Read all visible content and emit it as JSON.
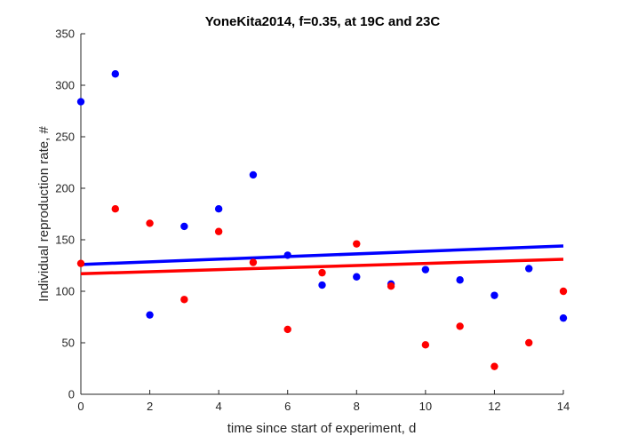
{
  "chart_data": {
    "type": "scatter",
    "title": "YoneKita2014, f=0.35, at 19C and 23C",
    "xlabel": "time since start of experiment, d",
    "ylabel": "Individual reproduction rate, #",
    "xlim": [
      0,
      14
    ],
    "ylim": [
      0,
      350
    ],
    "xticks": [
      "0",
      "2",
      "4",
      "6",
      "8",
      "10",
      "12",
      "14"
    ],
    "yticks": [
      "0",
      "50",
      "100",
      "150",
      "200",
      "250",
      "300",
      "350"
    ],
    "grid": false,
    "series": [
      {
        "color": "#0000ff",
        "points": [
          {
            "x": 0,
            "y": 284
          },
          {
            "x": 1,
            "y": 311
          },
          {
            "x": 2,
            "y": 77
          },
          {
            "x": 3,
            "y": 163
          },
          {
            "x": 4,
            "y": 180
          },
          {
            "x": 5,
            "y": 213
          },
          {
            "x": 6,
            "y": 135
          },
          {
            "x": 7,
            "y": 106
          },
          {
            "x": 8,
            "y": 114
          },
          {
            "x": 9,
            "y": 107
          },
          {
            "x": 10,
            "y": 121
          },
          {
            "x": 11,
            "y": 111
          },
          {
            "x": 12,
            "y": 96
          },
          {
            "x": 13,
            "y": 122
          },
          {
            "x": 14,
            "y": 74
          }
        ],
        "fit_line": {
          "x": [
            0,
            14
          ],
          "y": [
            126,
            144
          ]
        }
      },
      {
        "color": "#ff0000",
        "points": [
          {
            "x": 0,
            "y": 127
          },
          {
            "x": 1,
            "y": 180
          },
          {
            "x": 2,
            "y": 166
          },
          {
            "x": 3,
            "y": 92
          },
          {
            "x": 4,
            "y": 158
          },
          {
            "x": 5,
            "y": 128
          },
          {
            "x": 6,
            "y": 63
          },
          {
            "x": 7,
            "y": 118
          },
          {
            "x": 8,
            "y": 146
          },
          {
            "x": 9,
            "y": 105
          },
          {
            "x": 10,
            "y": 48
          },
          {
            "x": 11,
            "y": 66
          },
          {
            "x": 12,
            "y": 27
          },
          {
            "x": 13,
            "y": 50
          },
          {
            "x": 14,
            "y": 100
          }
        ],
        "fit_line": {
          "x": [
            0,
            14
          ],
          "y": [
            117,
            131
          ]
        }
      }
    ]
  }
}
